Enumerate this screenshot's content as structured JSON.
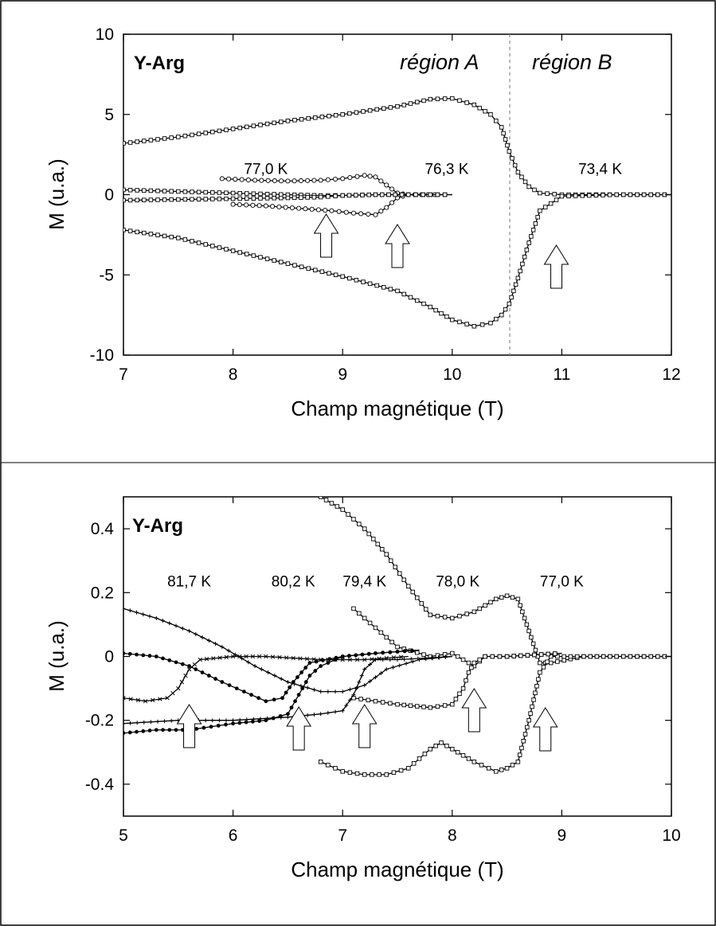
{
  "colors": {
    "frame": "#000000",
    "curve": "#000000",
    "arrow_fill": "#ffffff",
    "region_divider": "#888888"
  },
  "chart_data": [
    {
      "type": "line",
      "sample": "Y-Arg",
      "xlabel": "Champ magnétique (T)",
      "ylabel": "M  (u.a.)",
      "xlim": [
        7,
        12
      ],
      "ylim": [
        -10,
        10
      ],
      "xticks": [
        "7",
        "8",
        "9",
        "10",
        "11",
        "12"
      ],
      "yticks": [
        "10",
        "5",
        "0",
        "-5",
        "-10"
      ],
      "regions": [
        "région A",
        "région B"
      ],
      "region_boundary_x": 10.52,
      "temperature_labels": [
        {
          "text": "77,0 K",
          "x": 8.3,
          "y": 1.3
        },
        {
          "text": "76,3 K",
          "x": 9.95,
          "y": 1.3
        },
        {
          "text": "73,4 K",
          "x": 11.35,
          "y": 1.3
        }
      ],
      "arrows_at_x": [
        8.85,
        9.5,
        10.95
      ],
      "series": [
        {
          "marker": "square",
          "x": [
            7,
            7.5,
            8,
            8.5,
            9,
            9.5,
            9.8,
            10,
            10.2,
            10.35,
            10.45,
            10.52,
            10.6,
            10.7,
            10.8,
            11,
            11.5,
            12
          ],
          "y": [
            3.2,
            3.6,
            4.1,
            4.6,
            5.0,
            5.5,
            5.95,
            6.0,
            5.6,
            5.0,
            4.2,
            2.7,
            1.4,
            0.5,
            0.1,
            0,
            0,
            0
          ]
        },
        {
          "marker": "square",
          "x": [
            7,
            7.5,
            8,
            8.5,
            9,
            9.5,
            9.8,
            10,
            10.2,
            10.35,
            10.45,
            10.52,
            10.6,
            10.7,
            10.8,
            11,
            11.5,
            12
          ],
          "y": [
            -2.2,
            -2.7,
            -3.5,
            -4.3,
            -5.1,
            -6.0,
            -7.0,
            -7.8,
            -8.2,
            -8.0,
            -7.5,
            -6.8,
            -5.2,
            -3.0,
            -1.0,
            -0.1,
            0,
            0
          ]
        },
        {
          "marker": "circle",
          "x": [
            7.9,
            8.2,
            8.5,
            8.8,
            9.0,
            9.2,
            9.3,
            9.4,
            9.5,
            9.6,
            9.9
          ],
          "y": [
            1.0,
            0.9,
            0.85,
            0.9,
            1.0,
            1.2,
            1.1,
            0.6,
            0.1,
            0,
            0
          ]
        },
        {
          "marker": "circle",
          "x": [
            8.0,
            8.3,
            8.6,
            8.9,
            9.1,
            9.3,
            9.4,
            9.5,
            9.6,
            9.9
          ],
          "y": [
            -0.6,
            -0.7,
            -0.85,
            -1.0,
            -1.15,
            -1.25,
            -0.8,
            -0.2,
            0,
            0
          ]
        },
        {
          "marker": "square",
          "x": [
            7,
            7.5,
            8,
            8.5,
            8.8,
            9.0,
            9.3,
            9.6,
            10.0
          ],
          "y": [
            0.3,
            0.2,
            0.1,
            0.0,
            -0.05,
            -0.05,
            0,
            0,
            0
          ]
        },
        {
          "marker": "square",
          "x": [
            7,
            7.5,
            8,
            8.5,
            8.8,
            9.0,
            9.3,
            9.6,
            10.0
          ],
          "y": [
            -0.35,
            -0.3,
            -0.25,
            -0.2,
            -0.15,
            -0.05,
            0,
            0,
            0
          ]
        }
      ]
    },
    {
      "type": "line",
      "sample": "Y-Arg",
      "xlabel": "Champ magnétique (T)",
      "ylabel": "M  (u.a.)",
      "xlim": [
        5,
        10
      ],
      "ylim": [
        -0.5,
        0.5
      ],
      "xticks": [
        "5",
        "6",
        "7",
        "8",
        "9",
        "10"
      ],
      "yticks": [
        "0.4",
        "0.2",
        "0",
        "-0.2",
        "-0.4"
      ],
      "temperature_labels": [
        {
          "text": "81,7 K",
          "x": 5.6,
          "y": 0.22
        },
        {
          "text": "80,2 K",
          "x": 6.55,
          "y": 0.22
        },
        {
          "text": "79,4 K",
          "x": 7.2,
          "y": 0.22
        },
        {
          "text": "78,0 K",
          "x": 8.05,
          "y": 0.22
        },
        {
          "text": "77,0 K",
          "x": 9.0,
          "y": 0.22
        }
      ],
      "arrows_at_x": [
        5.6,
        6.6,
        7.2,
        8.2,
        8.85
      ],
      "series": [
        {
          "marker": "square",
          "x": [
            6.8,
            7.0,
            7.2,
            7.4,
            7.6,
            7.8,
            8.0,
            8.2,
            8.4,
            8.5,
            8.6,
            8.7,
            8.8,
            8.9,
            9.2,
            9.5,
            10.0
          ],
          "y": [
            0.5,
            0.46,
            0.4,
            0.32,
            0.22,
            0.13,
            0.12,
            0.14,
            0.18,
            0.19,
            0.18,
            0.08,
            -0.02,
            -0.02,
            0,
            0,
            0
          ]
        },
        {
          "marker": "square",
          "x": [
            6.8,
            7.0,
            7.2,
            7.4,
            7.6,
            7.8,
            7.9,
            8.0,
            8.2,
            8.4,
            8.5,
            8.6,
            8.7,
            8.8,
            8.9,
            9.2,
            9.5,
            10.0
          ],
          "y": [
            -0.33,
            -0.36,
            -0.37,
            -0.37,
            -0.35,
            -0.29,
            -0.27,
            -0.29,
            -0.33,
            -0.36,
            -0.35,
            -0.33,
            -0.2,
            -0.05,
            0,
            0,
            0,
            0
          ]
        },
        {
          "marker": "square",
          "x": [
            7.1,
            7.3,
            7.5,
            7.8,
            8.0,
            8.1,
            8.2,
            8.3,
            8.5,
            9.0
          ],
          "y": [
            0.15,
            0.09,
            0.03,
            0.0,
            0.01,
            -0.01,
            -0.03,
            0.0,
            0.0,
            0.01
          ]
        },
        {
          "marker": "square",
          "x": [
            7.1,
            7.3,
            7.5,
            7.8,
            8.0,
            8.1,
            8.15,
            8.2,
            8.3,
            8.5,
            9.0
          ],
          "y": [
            -0.13,
            -0.14,
            -0.15,
            -0.16,
            -0.15,
            -0.1,
            -0.05,
            -0.02,
            0.0,
            0.0,
            0.01
          ]
        },
        {
          "marker": "plus",
          "x": [
            5.0,
            5.3,
            5.6,
            5.9,
            6.2,
            6.5,
            6.8,
            7.0,
            7.2,
            7.4,
            7.7,
            8.0
          ],
          "y": [
            0.15,
            0.12,
            0.08,
            0.03,
            -0.03,
            -0.08,
            -0.11,
            -0.11,
            -0.09,
            -0.04,
            -0.01,
            0.0
          ]
        },
        {
          "marker": "plus",
          "x": [
            5.0,
            5.5,
            6.0,
            6.5,
            6.8,
            7.0,
            7.1,
            7.2,
            7.3,
            7.5,
            8.0
          ],
          "y": [
            -0.21,
            -0.2,
            -0.2,
            -0.19,
            -0.18,
            -0.17,
            -0.12,
            -0.04,
            -0.01,
            -0.01,
            0.0
          ]
        },
        {
          "marker": "cross",
          "x": [
            5.0,
            5.2,
            5.4,
            5.5,
            5.6,
            5.7,
            6.0,
            6.3,
            6.8,
            7.2,
            7.6
          ],
          "y": [
            -0.13,
            -0.14,
            -0.13,
            -0.1,
            -0.04,
            -0.01,
            0.0,
            0.0,
            -0.01,
            -0.01,
            0.0
          ]
        },
        {
          "marker": "dot",
          "x": [
            5.0,
            5.3,
            5.6,
            5.9,
            6.1,
            6.3,
            6.45,
            6.55,
            6.7,
            7.0,
            7.3,
            7.7
          ],
          "y": [
            0.01,
            0.0,
            -0.03,
            -0.08,
            -0.11,
            -0.14,
            -0.13,
            -0.08,
            -0.02,
            0.0,
            0.01,
            0.02
          ]
        },
        {
          "marker": "dot",
          "x": [
            5.0,
            5.3,
            5.6,
            6.0,
            6.3,
            6.5,
            6.6,
            6.7,
            6.8,
            7.0,
            7.3,
            7.7
          ],
          "y": [
            -0.24,
            -0.23,
            -0.23,
            -0.21,
            -0.2,
            -0.18,
            -0.12,
            -0.06,
            -0.03,
            0.0,
            0.01,
            0.02
          ]
        }
      ]
    }
  ]
}
